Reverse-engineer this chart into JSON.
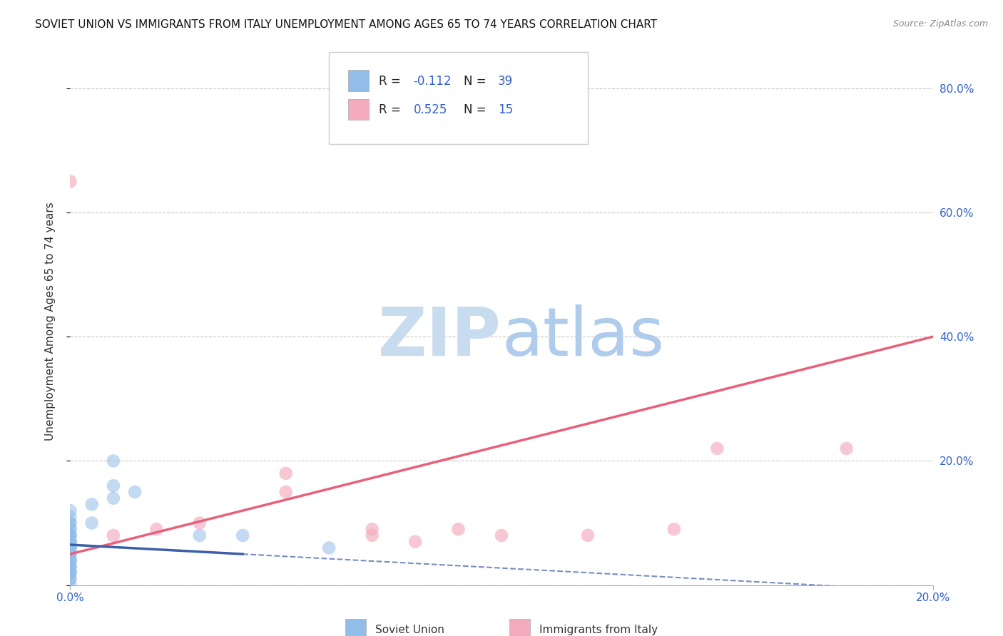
{
  "title": "SOVIET UNION VS IMMIGRANTS FROM ITALY UNEMPLOYMENT AMONG AGES 65 TO 74 YEARS CORRELATION CHART",
  "source": "Source: ZipAtlas.com",
  "ylabel": "Unemployment Among Ages 65 to 74 years",
  "xlim": [
    0.0,
    0.2
  ],
  "ylim": [
    0.0,
    0.85
  ],
  "ytick_positions": [
    0.0,
    0.2,
    0.4,
    0.6,
    0.8
  ],
  "xtick_positions": [
    0.0,
    0.2
  ],
  "xtick_labels": [
    "0.0%",
    "20.0%"
  ],
  "right_ytick_labels": [
    "80.0%",
    "60.0%",
    "40.0%",
    "20.0%"
  ],
  "right_ytick_positions": [
    0.8,
    0.6,
    0.4,
    0.2
  ],
  "soviet_color": "#92BDE8",
  "italy_color": "#F4ABBE",
  "soviet_R": -0.112,
  "soviet_N": 39,
  "italy_R": 0.525,
  "italy_N": 15,
  "background_color": "#FFFFFF",
  "grid_color": "#C8C8C8",
  "watermark_zip_color": "#C8DCF0",
  "watermark_atlas_color": "#B8D0E8",
  "title_fontsize": 11,
  "axis_label_fontsize": 11,
  "tick_fontsize": 11,
  "soviet_line_color": "#3D5FA8",
  "italy_line_color": "#E8607A",
  "soviet_scatter_x": [
    0.0,
    0.0,
    0.0,
    0.0,
    0.0,
    0.0,
    0.0,
    0.0,
    0.0,
    0.0,
    0.0,
    0.0,
    0.0,
    0.0,
    0.0,
    0.0,
    0.0,
    0.0,
    0.0,
    0.0,
    0.0,
    0.0,
    0.0,
    0.0,
    0.0,
    0.0,
    0.0,
    0.0,
    0.0,
    0.0,
    0.005,
    0.005,
    0.01,
    0.01,
    0.01,
    0.015,
    0.03,
    0.04,
    0.06
  ],
  "soviet_scatter_y": [
    0.0,
    0.01,
    0.02,
    0.03,
    0.04,
    0.05,
    0.06,
    0.07,
    0.08,
    0.09,
    0.1,
    0.11,
    0.12,
    0.02,
    0.03,
    0.05,
    0.07,
    0.09,
    0.04,
    0.06,
    0.08,
    0.01,
    0.03,
    0.05,
    0.07,
    0.02,
    0.04,
    0.06,
    0.08,
    0.1,
    0.1,
    0.13,
    0.14,
    0.16,
    0.2,
    0.15,
    0.08,
    0.08,
    0.06
  ],
  "italy_scatter_x": [
    0.0,
    0.01,
    0.02,
    0.03,
    0.05,
    0.05,
    0.07,
    0.07,
    0.08,
    0.09,
    0.1,
    0.12,
    0.14,
    0.15,
    0.18
  ],
  "italy_scatter_y": [
    0.65,
    0.08,
    0.09,
    0.1,
    0.15,
    0.18,
    0.08,
    0.09,
    0.07,
    0.09,
    0.08,
    0.08,
    0.09,
    0.22,
    0.22
  ],
  "italy_line_x": [
    0.0,
    0.2
  ],
  "italy_line_y": [
    0.05,
    0.4
  ],
  "soviet_line_x": [
    0.0,
    0.07
  ],
  "soviet_line_y": [
    0.065,
    0.04
  ]
}
